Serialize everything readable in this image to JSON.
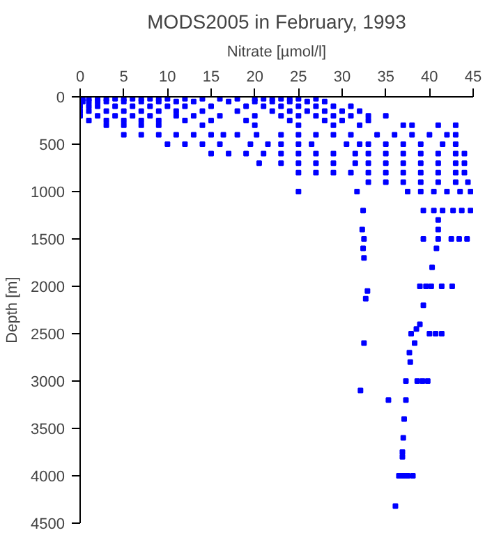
{
  "chart_data": {
    "type": "scatter",
    "title": "MODS2005 in February, 1993",
    "xlabel": "Nitrate [µmol/l]",
    "ylabel": "Depth [m]",
    "xlim": [
      0,
      45
    ],
    "ylim": [
      4500,
      0
    ],
    "xticks": [
      0,
      5,
      10,
      15,
      20,
      25,
      30,
      35,
      40,
      45
    ],
    "yticks": [
      0,
      500,
      1000,
      1500,
      2000,
      2500,
      3000,
      3500,
      4000,
      4500
    ],
    "grid": false,
    "marker": "square",
    "series": [
      {
        "color": "#0000ff",
        "x": [
          0.3,
          1,
          2,
          3,
          4,
          5,
          6,
          7,
          8,
          9,
          10,
          12,
          14,
          16,
          18,
          20,
          21,
          22,
          23,
          24,
          25,
          27,
          0.3,
          1,
          2,
          3,
          5,
          7,
          9,
          11,
          13,
          17,
          20,
          22,
          24,
          26,
          28,
          0,
          1,
          2,
          4,
          6,
          8,
          10,
          12,
          15,
          19,
          21,
          23,
          25,
          27,
          29,
          31,
          0,
          1,
          3,
          5,
          7,
          9,
          11,
          14,
          18,
          22,
          24,
          26,
          28,
          30,
          32,
          0,
          2,
          4,
          6,
          8,
          11,
          13,
          16,
          20,
          23,
          25,
          27,
          29,
          31,
          33,
          35,
          1,
          3,
          5,
          7,
          9,
          12,
          15,
          19,
          24,
          28,
          30,
          33,
          3,
          5,
          7,
          9,
          14,
          20,
          25,
          29,
          32,
          37,
          38,
          41,
          43,
          5,
          7,
          9,
          11,
          13,
          15,
          16.4,
          18,
          20.2,
          23,
          25,
          27,
          29,
          31,
          34,
          36,
          38,
          40,
          42,
          43,
          10,
          12,
          14,
          16,
          19.5,
          21.5,
          23,
          25,
          26.5,
          30.5,
          32,
          33,
          35,
          37,
          39,
          41.5,
          43,
          15,
          17,
          19,
          21,
          23,
          25,
          27,
          29,
          31.5,
          33,
          35,
          37,
          39,
          41,
          43,
          44,
          20.5,
          23,
          25,
          27,
          29,
          31.5,
          33,
          35,
          37,
          39,
          41,
          43,
          44,
          25,
          27,
          29,
          31,
          33,
          35,
          37,
          39,
          41,
          43,
          44,
          33,
          35,
          37,
          39,
          41,
          43,
          44.4,
          25,
          31.7,
          37.5,
          39,
          40.5,
          42,
          43.5,
          44.7,
          32.4,
          39.3,
          40.5,
          41.5,
          42.7,
          43.7,
          44.7,
          41,
          32.3,
          41,
          32.5,
          39.3,
          41,
          42.5,
          43.4,
          44.3,
          32.4,
          40.8,
          32.5,
          40.3,
          38.9,
          39.6,
          40.2,
          41.4,
          42.6,
          32.9,
          32.7,
          39.3,
          38.9,
          38.5,
          37.9,
          40,
          40.7,
          41.4,
          32.5,
          38.3,
          37.7,
          37.8,
          37.3,
          38.6,
          39.2,
          39.8,
          32.1,
          35.3,
          37.3,
          37.1,
          37,
          36.9,
          36.9,
          36.5,
          37,
          37.5,
          38.1,
          36.1
        ],
        "values": [
          20,
          20,
          20,
          20,
          20,
          20,
          20,
          20,
          20,
          20,
          20,
          20,
          20,
          20,
          20,
          20,
          20,
          20,
          20,
          20,
          20,
          20,
          50,
          50,
          50,
          50,
          50,
          50,
          50,
          50,
          50,
          50,
          50,
          50,
          50,
          50,
          50,
          100,
          100,
          100,
          100,
          100,
          100,
          100,
          100,
          100,
          100,
          100,
          100,
          100,
          100,
          100,
          100,
          150,
          150,
          150,
          150,
          150,
          150,
          150,
          150,
          150,
          150,
          150,
          150,
          150,
          150,
          150,
          200,
          200,
          200,
          200,
          200,
          200,
          200,
          200,
          200,
          200,
          200,
          200,
          200,
          200,
          200,
          200,
          250,
          250,
          250,
          250,
          250,
          250,
          250,
          250,
          250,
          250,
          250,
          250,
          300,
          300,
          300,
          300,
          300,
          300,
          300,
          300,
          300,
          300,
          300,
          300,
          300,
          400,
          400,
          400,
          400,
          400,
          400,
          400,
          400,
          400,
          400,
          400,
          400,
          400,
          400,
          400,
          400,
          400,
          400,
          400,
          400,
          500,
          500,
          500,
          500,
          500,
          500,
          500,
          500,
          500,
          500,
          500,
          500,
          500,
          500,
          500,
          500,
          500,
          600,
          600,
          600,
          600,
          600,
          600,
          600,
          600,
          600,
          600,
          600,
          600,
          600,
          600,
          600,
          600,
          700,
          700,
          700,
          700,
          700,
          700,
          700,
          700,
          700,
          700,
          700,
          700,
          700,
          800,
          800,
          800,
          800,
          800,
          800,
          800,
          800,
          800,
          800,
          800,
          900,
          900,
          900,
          900,
          900,
          900,
          900,
          1000,
          1000,
          1000,
          1000,
          1000,
          1000,
          1000,
          1000,
          1200,
          1200,
          1200,
          1200,
          1200,
          1200,
          1200,
          1300,
          1400,
          1400,
          1500,
          1500,
          1500,
          1500,
          1500,
          1500,
          1600,
          1600,
          1700,
          1800,
          2000,
          2000,
          2000,
          2000,
          2000,
          2050,
          2130,
          2200,
          2400,
          2450,
          2500,
          2500,
          2500,
          2500,
          2600,
          2600,
          2700,
          2800,
          3000,
          3000,
          3000,
          3000,
          3100,
          3200,
          3200,
          3400,
          3600,
          3750,
          3800,
          4000,
          4000,
          4000,
          4000,
          4320
        ]
      }
    ]
  }
}
